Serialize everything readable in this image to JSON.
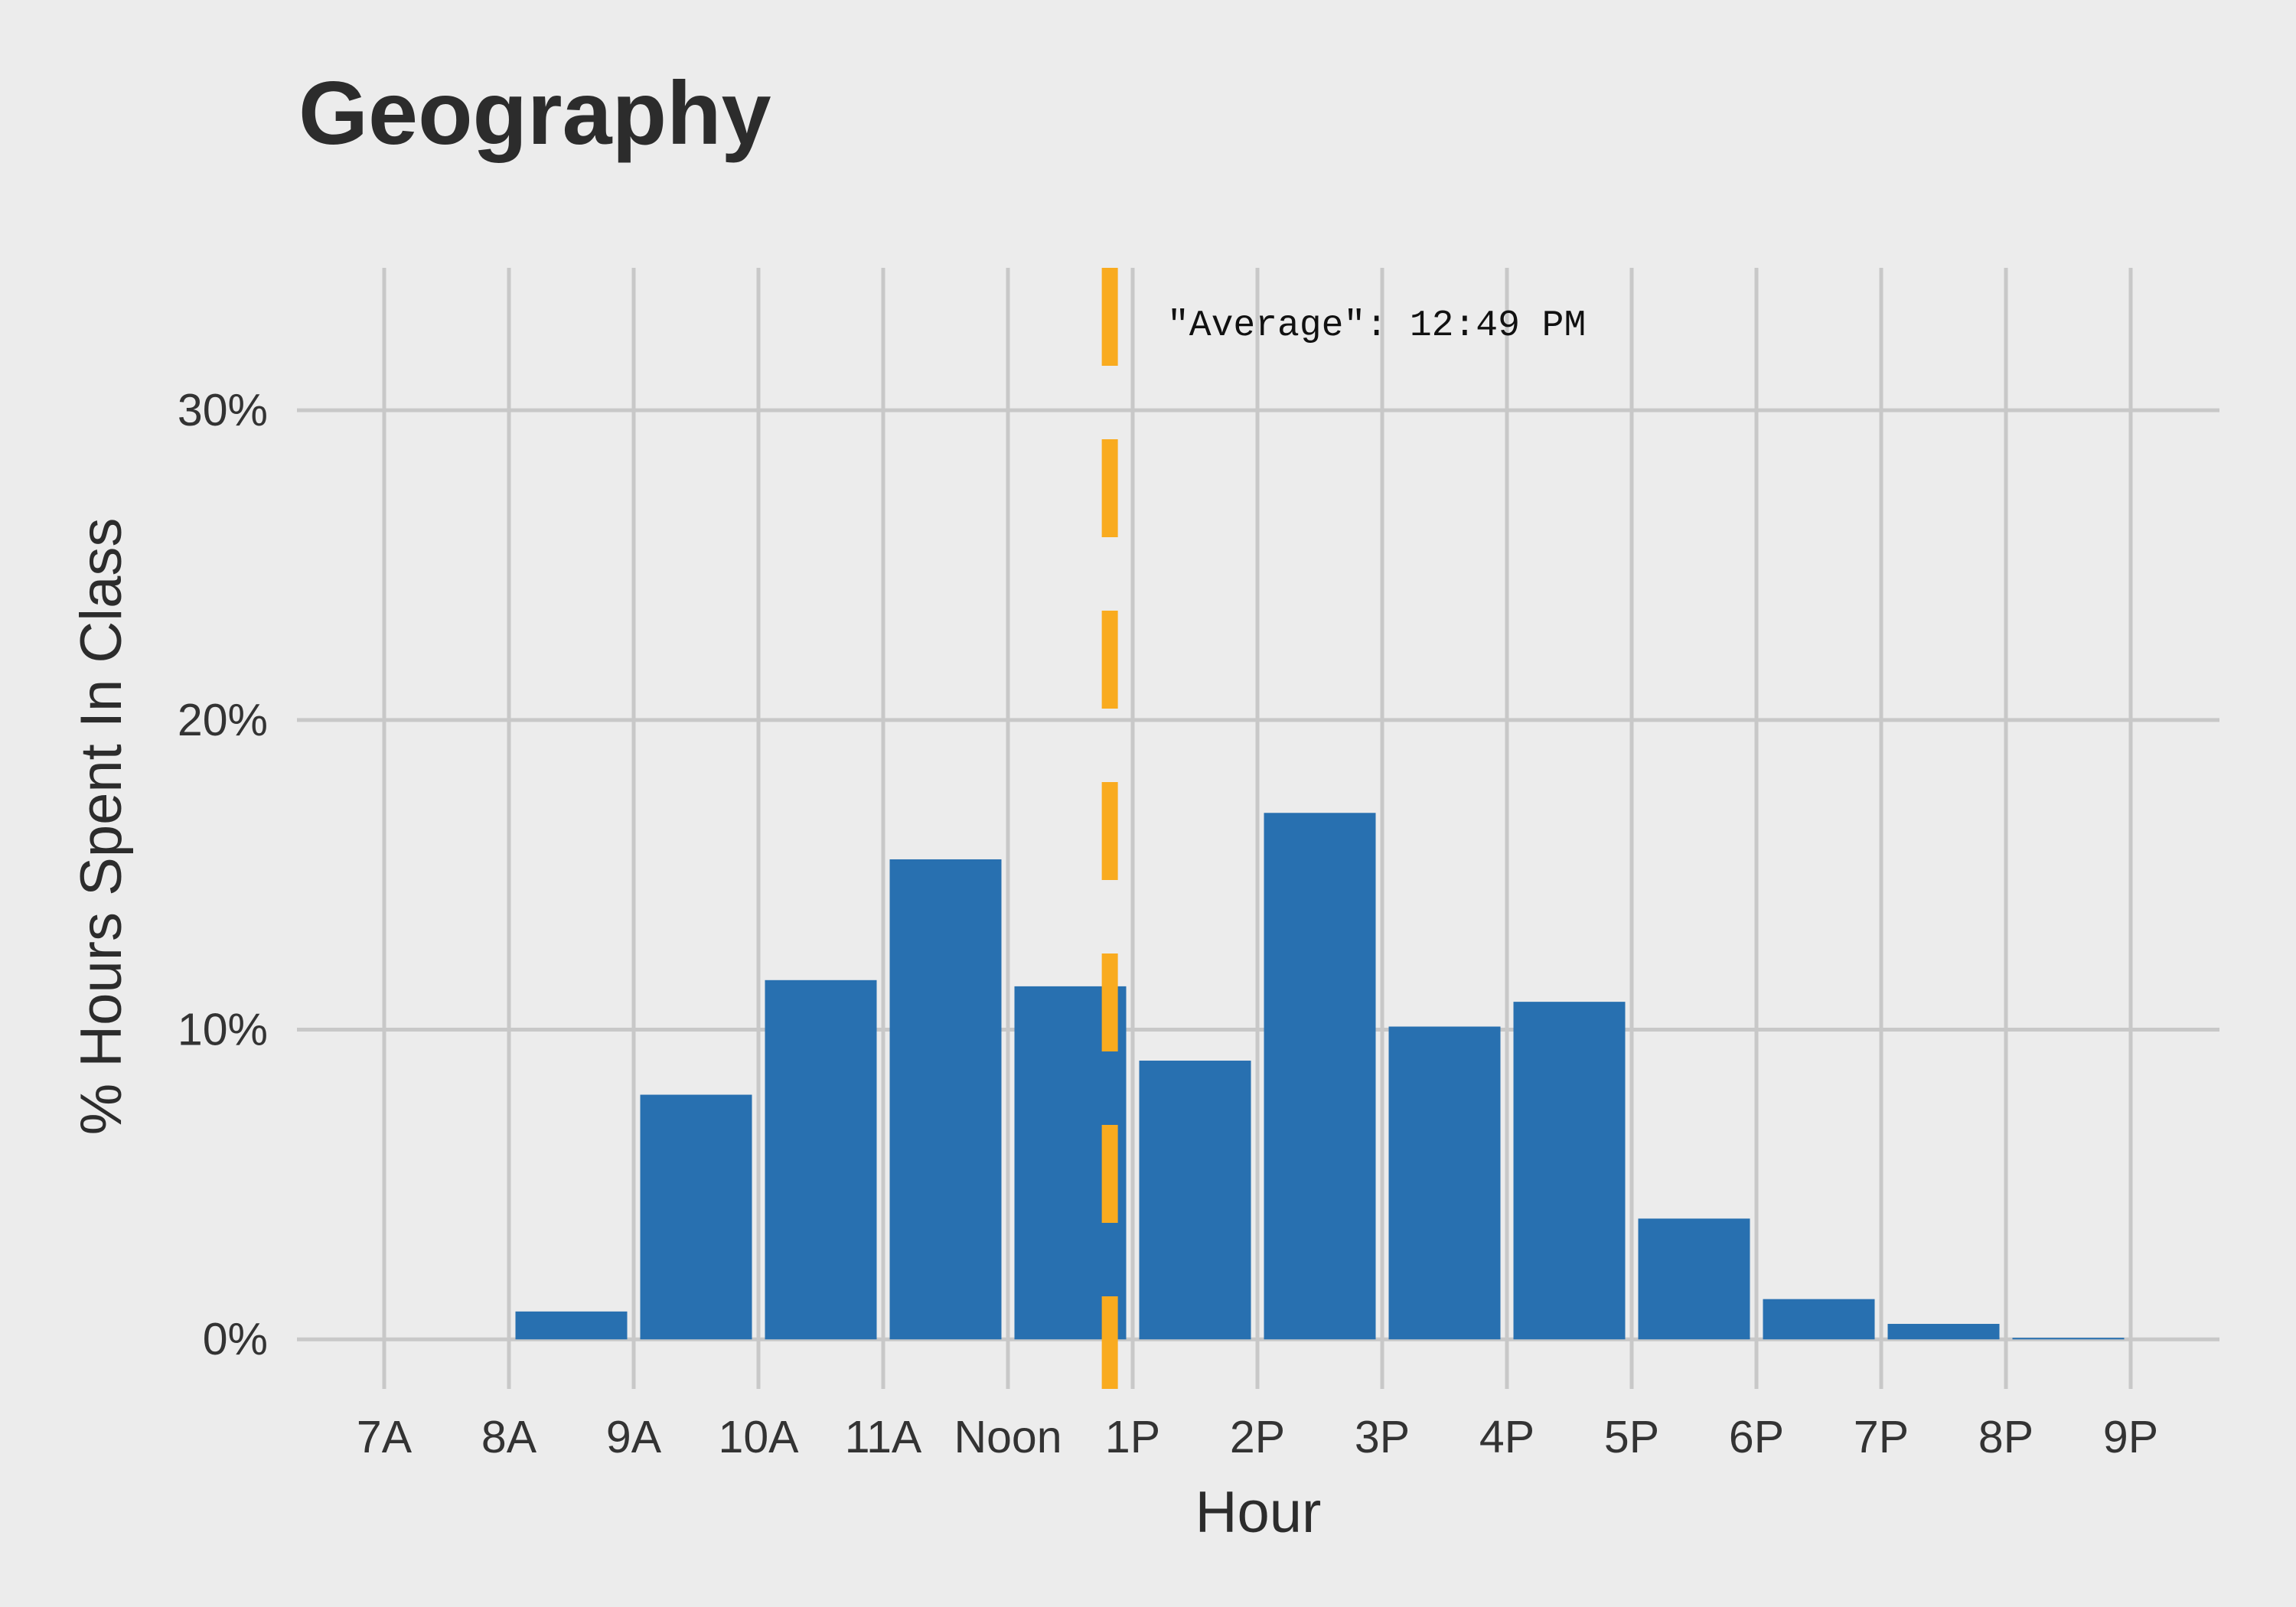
{
  "chart_data": {
    "type": "bar",
    "title": "Geography",
    "xlabel": "Hour",
    "ylabel": "% Hours Spent In Class",
    "categories": [
      "7A",
      "8A",
      "9A",
      "10A",
      "11A",
      "Noon",
      "1P",
      "2P",
      "3P",
      "4P",
      "5P",
      "6P",
      "7P",
      "8P",
      "9P"
    ],
    "values": [
      0,
      0.9,
      7.9,
      11.6,
      15.5,
      11.4,
      9.0,
      17.0,
      10.1,
      10.9,
      3.9,
      1.3,
      0.5,
      0.05,
      0
    ],
    "ylim": [
      -1.6,
      34.6
    ],
    "yticks": [
      0,
      10,
      20,
      30
    ],
    "ytick_labels": [
      "0%",
      "10%",
      "20%",
      "30%"
    ],
    "grid": true,
    "legend": "none",
    "bar_color": "#2870b0",
    "annotation": {
      "label": "\"Average\": 12:49 PM",
      "x_value": "12:49 PM",
      "style": "dashed vertical line",
      "color": "#f9ab1f"
    }
  }
}
